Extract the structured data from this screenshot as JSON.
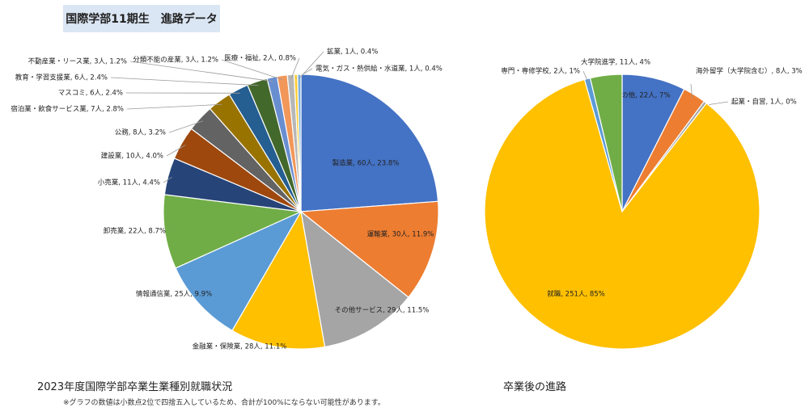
{
  "header": {
    "title": "国際学部11期生　進路データ"
  },
  "captions": {
    "industry": "2023年度国際学部卒業生業種別就職状況",
    "note": "※グラフの数値は小数点2位で四捨五入しているため、合計が100%にならない可能性があります。",
    "career": "卒業後の進路"
  },
  "chart_data": [
    {
      "type": "pie",
      "title": "",
      "slices": [
        {
          "label": "製造業, 60人, 23.8%",
          "value": 60,
          "color": "#4472c4"
        },
        {
          "label": "運輸業, 30人, 11.9%",
          "value": 30,
          "color": "#ed7d31"
        },
        {
          "label": "その他サービス, 29人, 11.5%",
          "value": 29,
          "color": "#a5a5a5"
        },
        {
          "label": "金融業・保険業, 28人, 11.1%",
          "value": 28,
          "color": "#ffc000"
        },
        {
          "label": "情報通信業, 25人, 9.9%",
          "value": 25,
          "color": "#5b9bd5"
        },
        {
          "label": "卸売業, 22人, 8.7%",
          "value": 22,
          "color": "#70ad47"
        },
        {
          "label": "小売業, 11人, 4.4%",
          "value": 11,
          "color": "#264478"
        },
        {
          "label": "建設業, 10人, 4.0%",
          "value": 10,
          "color": "#9e480e"
        },
        {
          "label": "公務, 8人, 3.2%",
          "value": 8,
          "color": "#636363"
        },
        {
          "label": "宿泊業・飲食サービス業, 7人, 2.8%",
          "value": 7,
          "color": "#997300"
        },
        {
          "label": "マスコミ, 6人, 2.4%",
          "value": 6,
          "color": "#255e91"
        },
        {
          "label": "教育・学習支援業, 6人, 2.4%",
          "value": 6,
          "color": "#43682b"
        },
        {
          "label": "不動産業・リース業, 3人, 1.2%",
          "value": 3,
          "color": "#698ed0"
        },
        {
          "label": "分類不能の産業, 3人, 1.2%",
          "value": 3,
          "color": "#f1975a"
        },
        {
          "label": "医療・福祉, 2人, 0.8%",
          "value": 2,
          "color": "#b7b7b7"
        },
        {
          "label": "電気・ガス・熱供給・水道業, 1人, 0.4%",
          "value": 1,
          "color": "#ffcd33"
        },
        {
          "label": "鉱業, 1人, 0.4%",
          "value": 1,
          "color": "#7cafdd"
        }
      ]
    },
    {
      "type": "pie",
      "title": "",
      "slices": [
        {
          "label": "その他, 22人, 7%",
          "value": 22,
          "color": "#4472c4"
        },
        {
          "label": "海外留学（大学院含む）, 8人, 3%",
          "value": 8,
          "color": "#ed7d31"
        },
        {
          "label": "起業・自営, 1人, 0%",
          "value": 1,
          "color": "#a5a5a5"
        },
        {
          "label": "就職, 251人, 85%",
          "value": 251,
          "color": "#ffc000"
        },
        {
          "label": "専門・専修学校, 2人, 1%",
          "value": 2,
          "color": "#5b9bd5"
        },
        {
          "label": "大学院進学, 11人, 4%",
          "value": 11,
          "color": "#70ad47"
        }
      ]
    }
  ]
}
